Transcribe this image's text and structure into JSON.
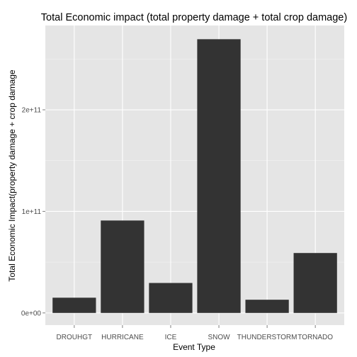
{
  "chart_data": {
    "type": "bar",
    "title": "Total Economic impact (total property damage + total crop damage)",
    "xlabel": "Event Type",
    "ylabel": "Total Economic Impact(property damage + crop damage",
    "categories": [
      "DROUHGT",
      "HURRICANE",
      "ICE",
      "SNOW",
      "THUNDERSTORM",
      "TORNADO"
    ],
    "values": [
      15000000000,
      91000000000,
      29500000000,
      269500000000,
      13000000000,
      59000000000
    ],
    "ylim": [
      -12000000000,
      283000000000
    ],
    "yticks": [
      0,
      100000000000,
      200000000000
    ],
    "ytick_labels": [
      "0e+00",
      "1e+11",
      "2e+11"
    ],
    "grid": true,
    "colors": {
      "panel": "#e5e5e5",
      "grid_major": "#ffffff",
      "grid_minor": "#f2f2f2",
      "bar": "#333333"
    }
  }
}
